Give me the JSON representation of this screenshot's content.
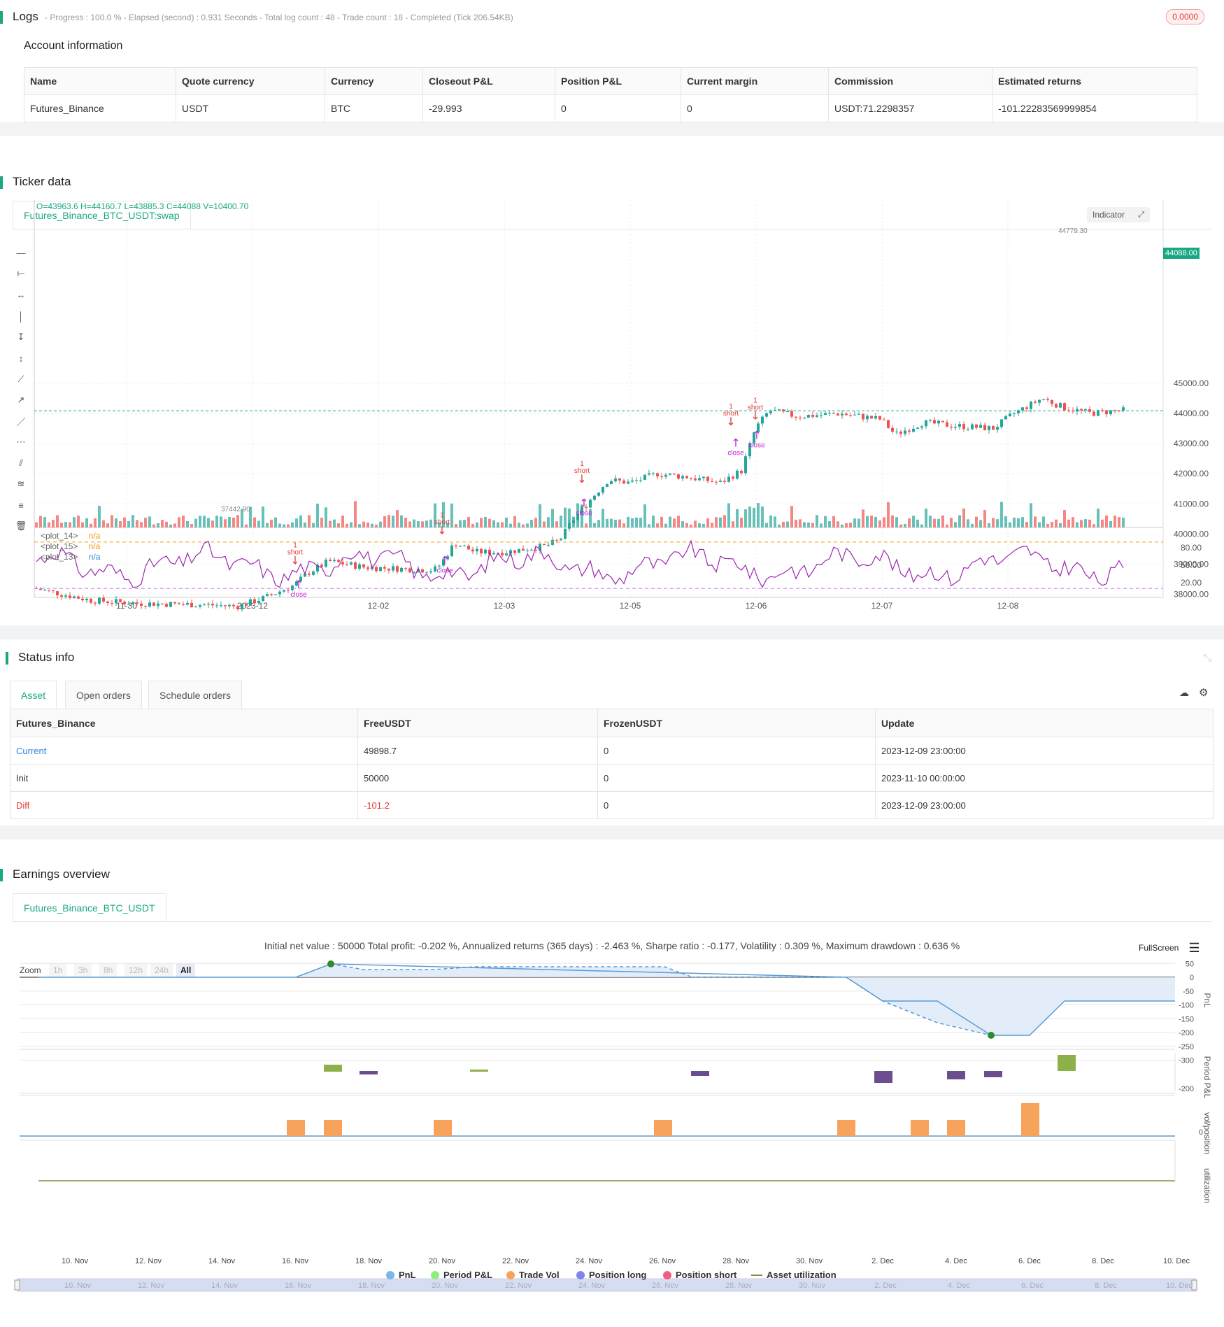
{
  "logs": {
    "title": "Logs",
    "status": "- Progress : 100.0 % - Elapsed (second) : 0.931 Seconds - Total log count : 48 - Trade count : 18 - Completed (Tick 206.54KB)",
    "badge": "0.0000"
  },
  "account": {
    "title": "Account information",
    "headers": [
      "Name",
      "Quote currency",
      "Currency",
      "Closeout P&L",
      "Position P&L",
      "Current margin",
      "Commission",
      "Estimated returns"
    ],
    "row": [
      "Futures_Binance",
      "USDT",
      "BTC",
      "-29.993",
      "0",
      "0",
      "USDT:71.2298357",
      "-101.22283569999854"
    ]
  },
  "ticker": {
    "title": "Ticker data",
    "tab": "Futures_Binance_BTC_USDT:swap",
    "ohlc": "O=43963.6 H=44160.7 L=43885.3 C=44088 V=10400.70",
    "indicator_btn": "Indicator",
    "current_price": "44088.00",
    "high_label": "44779.30",
    "low_label": "37442.90",
    "price_ticks": [
      "45000.00",
      "44000.00",
      "43000.00",
      "42000.00",
      "41000.00",
      "40000.00",
      "39000.00",
      "38000.00"
    ],
    "osc_ticks": [
      "80.00",
      "50.00",
      "20.00"
    ],
    "date_ticks": [
      "11-30",
      "2023-12",
      "12-02",
      "12-03",
      "12-05",
      "12-06",
      "12-07",
      "12-08"
    ],
    "plot_labels": [
      {
        "name": "<plot_14>",
        "value": "n/a",
        "color": "#f39c12"
      },
      {
        "name": "<plot_15>",
        "value": "n/a",
        "color": "#f39c12"
      },
      {
        "name": "<plot_13>",
        "value": "n/a",
        "color": "#2e86de"
      }
    ],
    "signal_short": "short",
    "signal_one": "1",
    "signal_close": "close",
    "colors": {
      "up": "#26a69a",
      "down": "#ef5350",
      "osc": "#9c27b0",
      "accent": "#1aa884"
    }
  },
  "status": {
    "title": "Status info",
    "tabs": [
      "Asset",
      "Open orders",
      "Schedule orders"
    ],
    "headers": [
      "Futures_Binance",
      "FreeUSDT",
      "FrozenUSDT",
      "Update"
    ],
    "rows": [
      [
        "Current",
        "49898.7",
        "0",
        "2023-12-09 23:00:00"
      ],
      [
        "Init",
        "50000",
        "0",
        "2023-11-10 00:00:00"
      ],
      [
        "Diff",
        "-101.2",
        "0",
        "2023-12-09 23:00:00"
      ]
    ]
  },
  "earnings": {
    "title": "Earnings overview",
    "tab": "Futures_Binance_BTC_USDT",
    "summary": "Initial net value : 50000 Total profit: -0.202 %, Annualized returns (365 days) : -2.463 %, Sharpe ratio : -0.177, Volatility : 0.309 %, Maximum drawdown : 0.636 %",
    "fullscreen": "FullScreen",
    "zoom_label": "Zoom",
    "zoom_buttons": [
      "1h",
      "3h",
      "8h",
      "12h",
      "24h",
      "All"
    ],
    "pnl_ticks": [
      "50",
      "0",
      "-50",
      "-100",
      "-150",
      "-200",
      "-250",
      "-300"
    ],
    "period_tick": "-200",
    "vol_tick": "0",
    "axis_titles": [
      "PnL",
      "Period P&L",
      "vol/position",
      "utilization"
    ],
    "date_ticks": [
      "10. Nov",
      "12. Nov",
      "14. Nov",
      "16. Nov",
      "18. Nov",
      "20. Nov",
      "22. Nov",
      "24. Nov",
      "26. Nov",
      "28. Nov",
      "30. Nov",
      "2. Dec",
      "4. Dec",
      "6. Dec",
      "8. Dec",
      "10. Dec"
    ],
    "legend": [
      {
        "name": "PnL",
        "color": "#7cb5ec"
      },
      {
        "name": "Period P&L",
        "color": "#90ed7d"
      },
      {
        "name": "Trade Vol",
        "color": "#f7a35c"
      },
      {
        "name": "Position long",
        "color": "#8085e9"
      },
      {
        "name": "Position short",
        "color": "#f15c80"
      },
      {
        "name": "Asset utilization",
        "color": "#8d8b3b"
      }
    ]
  }
}
